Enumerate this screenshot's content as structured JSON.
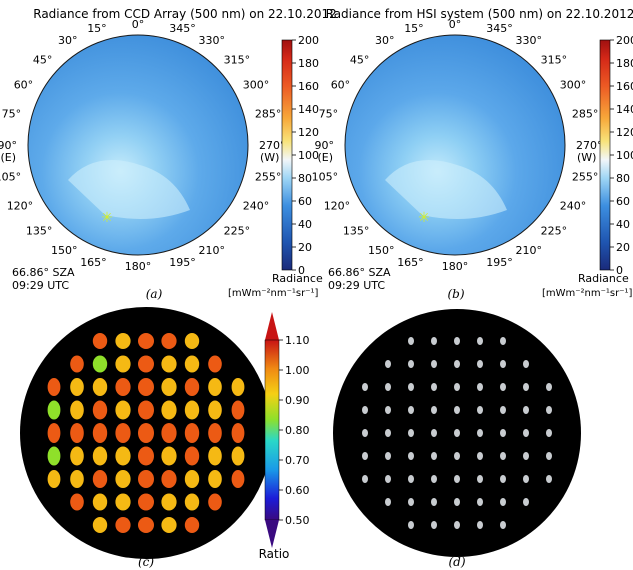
{
  "panel_a": {
    "title": "Radiance from CCD Array (500 nm) on 22.10.2012",
    "sza": "66.86° SZA",
    "utc": "09:29 UTC",
    "caption": "(a)"
  },
  "panel_b": {
    "title": "Radiance from HSI system (500 nm) on 22.10.2012",
    "sza": "66.86° SZA",
    "utc": "09:29 UTC",
    "caption": "(b)"
  },
  "panel_c": {
    "caption": "(c)"
  },
  "panel_d": {
    "caption": "(d)"
  },
  "azimuth_labels": [
    "0°",
    "15°",
    "30°",
    "45°",
    "60°",
    "75°",
    "90°",
    "105°",
    "120°",
    "135°",
    "150°",
    "165°",
    "180°",
    "195°",
    "210°",
    "225°",
    "240°",
    "255°",
    "270°",
    "285°",
    "300°",
    "315°",
    "330°",
    "345°"
  ],
  "east_label": "(E)",
  "west_label": "(W)",
  "radiance_colorbar": {
    "label": "Radiance",
    "unit": "[mWm⁻²nm⁻¹sr⁻¹]",
    "ticks": [
      "200",
      "180",
      "160",
      "140",
      "120",
      "100",
      "80",
      "60",
      "40",
      "20",
      "0"
    ]
  },
  "ratio_colorbar": {
    "label": "Ratio",
    "ticks": [
      "1.10",
      "1.00",
      "0.90",
      "0.80",
      "0.70",
      "0.60",
      "0.50"
    ]
  },
  "colors": {
    "sky_blue": "#4a9ee0",
    "ratio_yellow": "#f5b914",
    "ratio_orange": "#ec5a14",
    "ratio_green": "#8fe02a",
    "sun_marker": "#d8f020"
  },
  "chart_data": [
    {
      "type": "heatmap",
      "title": "Radiance from CCD Array (500 nm) on 22.10.2012",
      "colorbar_range": [
        0,
        200
      ]
    },
    {
      "type": "heatmap",
      "title": "Radiance from HSI system (500 nm) on 22.10.2012",
      "colorbar_range": [
        0,
        200
      ]
    },
    {
      "type": "heatmap",
      "colorbar_range": [
        0.5,
        1.1
      ]
    },
    {
      "type": "heatmap"
    }
  ]
}
